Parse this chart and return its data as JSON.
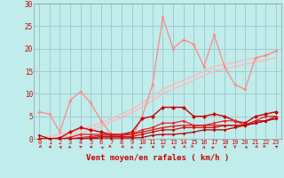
{
  "title": "",
  "xlabel": "Vent moyen/en rafales ( km/h )",
  "ylabel": "",
  "bg_color": "#c0ecec",
  "grid_color": "#a0cccc",
  "xlim": [
    -0.5,
    23.5
  ],
  "ylim": [
    0,
    30
  ],
  "xticks": [
    0,
    1,
    2,
    3,
    4,
    5,
    6,
    7,
    8,
    9,
    10,
    11,
    12,
    13,
    14,
    15,
    16,
    17,
    18,
    19,
    20,
    21,
    22,
    23
  ],
  "yticks": [
    0,
    5,
    10,
    15,
    20,
    25,
    30
  ],
  "lines": [
    {
      "x": [
        0,
        1,
        2,
        3,
        4,
        5,
        6,
        7,
        8,
        9,
        10,
        11,
        12,
        13,
        14,
        15,
        16,
        17,
        18,
        19,
        20,
        21,
        22,
        23
      ],
      "y": [
        0.3,
        0.5,
        1.0,
        1.5,
        2.0,
        2.8,
        3.5,
        4.5,
        5.5,
        6.5,
        8.0,
        9.5,
        11.0,
        12.0,
        13.0,
        14.0,
        15.0,
        16.0,
        16.5,
        17.0,
        17.5,
        18.0,
        18.5,
        19.5
      ],
      "color": "#ffb8b8",
      "linewidth": 1.0,
      "marker": null
    },
    {
      "x": [
        0,
        1,
        2,
        3,
        4,
        5,
        6,
        7,
        8,
        9,
        10,
        11,
        12,
        13,
        14,
        15,
        16,
        17,
        18,
        19,
        20,
        21,
        22,
        23
      ],
      "y": [
        0.0,
        0.0,
        0.3,
        0.7,
        1.2,
        2.0,
        2.8,
        3.8,
        4.8,
        5.8,
        7.0,
        8.5,
        10.0,
        11.0,
        12.0,
        13.0,
        14.0,
        15.0,
        15.5,
        16.0,
        16.5,
        17.0,
        17.5,
        18.0
      ],
      "color": "#ffb8b8",
      "linewidth": 1.0,
      "marker": null
    },
    {
      "x": [
        0,
        1,
        2,
        3,
        4,
        5,
        6,
        7,
        8,
        9,
        10,
        11,
        12,
        13,
        14,
        15,
        16,
        17,
        18,
        19,
        20,
        21,
        22,
        23
      ],
      "y": [
        6.0,
        5.5,
        1.5,
        8.5,
        10.5,
        8.0,
        4.0,
        1.0,
        0.2,
        0.2,
        5.0,
        12.0,
        27.0,
        20.0,
        22.0,
        21.0,
        16.0,
        23.0,
        16.0,
        12.0,
        11.0,
        18.0,
        18.5,
        19.5
      ],
      "color": "#ff8888",
      "linewidth": 0.9,
      "marker": "D",
      "markersize": 2.0
    },
    {
      "x": [
        0,
        1,
        2,
        3,
        4,
        5,
        6,
        7,
        8,
        9,
        10,
        11,
        12,
        13,
        14,
        15,
        16,
        17,
        18,
        19,
        20,
        21,
        22,
        23
      ],
      "y": [
        0.0,
        0.0,
        0.2,
        1.5,
        2.5,
        2.0,
        1.5,
        1.0,
        1.0,
        1.5,
        4.5,
        5.0,
        7.0,
        7.0,
        7.0,
        5.0,
        5.0,
        5.5,
        5.0,
        4.0,
        3.5,
        5.0,
        5.5,
        6.0
      ],
      "color": "#cc0000",
      "linewidth": 1.0,
      "marker": "D",
      "markersize": 2.5
    },
    {
      "x": [
        0,
        1,
        2,
        3,
        4,
        5,
        6,
        7,
        8,
        9,
        10,
        11,
        12,
        13,
        14,
        15,
        16,
        17,
        18,
        19,
        20,
        21,
        22,
        23
      ],
      "y": [
        0.0,
        0.0,
        0.0,
        0.3,
        1.0,
        1.0,
        1.0,
        1.0,
        1.0,
        1.0,
        2.0,
        2.5,
        3.5,
        3.5,
        4.0,
        3.0,
        3.0,
        3.5,
        4.0,
        4.0,
        3.0,
        4.0,
        5.0,
        5.0
      ],
      "color": "#ee2222",
      "linewidth": 0.9,
      "marker": "D",
      "markersize": 2.0
    },
    {
      "x": [
        0,
        1,
        2,
        3,
        4,
        5,
        6,
        7,
        8,
        9,
        10,
        11,
        12,
        13,
        14,
        15,
        16,
        17,
        18,
        19,
        20,
        21,
        22,
        23
      ],
      "y": [
        0.0,
        0.0,
        0.0,
        0.0,
        0.3,
        0.5,
        0.8,
        0.8,
        0.8,
        1.0,
        1.5,
        2.0,
        2.5,
        2.8,
        3.0,
        3.0,
        3.0,
        3.0,
        3.0,
        3.0,
        3.0,
        4.0,
        4.0,
        5.0
      ],
      "color": "#dd1111",
      "linewidth": 0.9,
      "marker": "^",
      "markersize": 2.0
    },
    {
      "x": [
        0,
        1,
        2,
        3,
        4,
        5,
        6,
        7,
        8,
        9,
        10,
        11,
        12,
        13,
        14,
        15,
        16,
        17,
        18,
        19,
        20,
        21,
        22,
        23
      ],
      "y": [
        0.0,
        0.0,
        0.0,
        0.0,
        0.0,
        0.2,
        0.5,
        0.5,
        0.5,
        0.5,
        1.0,
        1.5,
        2.0,
        2.0,
        2.5,
        2.5,
        2.5,
        2.5,
        3.0,
        3.0,
        3.0,
        3.5,
        4.0,
        4.5
      ],
      "color": "#cc1111",
      "linewidth": 0.9,
      "marker": "D",
      "markersize": 2.0
    },
    {
      "x": [
        0,
        1,
        2,
        3,
        4,
        5,
        6,
        7,
        8,
        9,
        10,
        11,
        12,
        13,
        14,
        15,
        16,
        17,
        18,
        19,
        20,
        21,
        22,
        23
      ],
      "y": [
        0.8,
        0.0,
        0.0,
        0.0,
        0.0,
        0.0,
        0.2,
        0.2,
        0.2,
        0.2,
        0.3,
        0.8,
        1.0,
        1.0,
        1.2,
        1.5,
        2.0,
        2.0,
        2.0,
        2.5,
        3.0,
        3.5,
        4.0,
        4.5
      ],
      "color": "#bb0000",
      "linewidth": 0.9,
      "marker": "D",
      "markersize": 1.8
    }
  ],
  "arrow_angles_deg": [
    225,
    200,
    150,
    240,
    60,
    190,
    130,
    310,
    220,
    95,
    50,
    175,
    265,
    140,
    220,
    310,
    85,
    50,
    175,
    265,
    140,
    220,
    310,
    55
  ],
  "label_fontsize": 6.5,
  "tick_fontsize": 5.5
}
